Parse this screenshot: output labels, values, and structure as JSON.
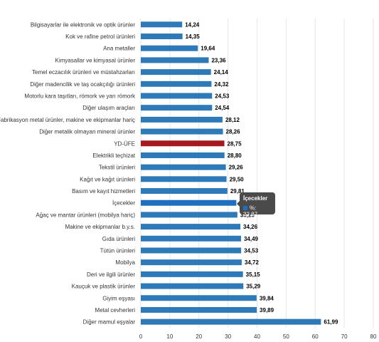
{
  "chart_data": {
    "type": "bar",
    "orientation": "horizontal",
    "categories": [
      "Bilgisayarlar ile elektronik ve optik ürünler",
      "Kok ve rafine petrol ürünleri",
      "Ana metaller",
      "Kimyasallar ve kimyasal ürünler",
      "Temel eczacılık ürünleri ve müstahzarları",
      "Diğer madencilik ve taş ocakçılığı ürünleri",
      "Motorlu kara taşıtları, römork ve yarı römork",
      "Diğer ulaşım araçları",
      "Fabrikasyon metal ürünler, makine ve ekipmanlar hariç",
      "Diğer metalik olmayan mineral ürünler",
      "YD-ÜFE",
      "Elektrikli teçhizat",
      "Tekstil ürünleri",
      "Kağıt ve kağıt ürünleri",
      "Basım ve kayıt hizmetleri",
      "İçecekler",
      "Ağaç ve mantar ürünleri (mobilya hariç)",
      "Makine ve ekipmanlar b.y.s.",
      "Gıda ürünleri",
      "Tütün ürünleri",
      "Mobilya",
      "Deri ve ilgili ürünler",
      "Kauçuk ve plastik ürünler",
      "Giyim eşyası",
      "Metal cevherleri",
      "Diğer mamul eşyalar"
    ],
    "values": [
      14.24,
      14.35,
      19.64,
      23.36,
      24.14,
      24.32,
      24.53,
      24.54,
      28.12,
      28.26,
      28.75,
      28.8,
      29.26,
      29.5,
      29.81,
      32.87,
      33.23,
      34.26,
      34.49,
      34.53,
      34.72,
      35.15,
      35.29,
      39.84,
      39.89,
      61.99
    ],
    "value_labels": [
      "14,24",
      "14,35",
      "19,64",
      "23,36",
      "24,14",
      "24,32",
      "24,53",
      "24,54",
      "28,12",
      "28,26",
      "28,75",
      "28,80",
      "29,26",
      "29,50",
      "29,81",
      "",
      "33,23",
      "34,26",
      "34,49",
      "34,53",
      "34,72",
      "35,15",
      "35,29",
      "39,84",
      "39,89",
      "61,99"
    ],
    "highlight_index": 10,
    "hover_index": 15,
    "xlim": [
      0,
      80
    ],
    "xticks": [
      0,
      10,
      20,
      30,
      40,
      50,
      60,
      70,
      80
    ],
    "grid": true,
    "legend": "none",
    "colors": {
      "default": "#2e7ab8",
      "highlight": "#a6191e",
      "hover": "#1f6fbf",
      "grid": "#e6e6e6"
    },
    "title": "",
    "xlabel": "",
    "ylabel": ""
  },
  "tooltip": {
    "title": "İçecekler",
    "series": "%",
    "value": ": 32.87"
  }
}
